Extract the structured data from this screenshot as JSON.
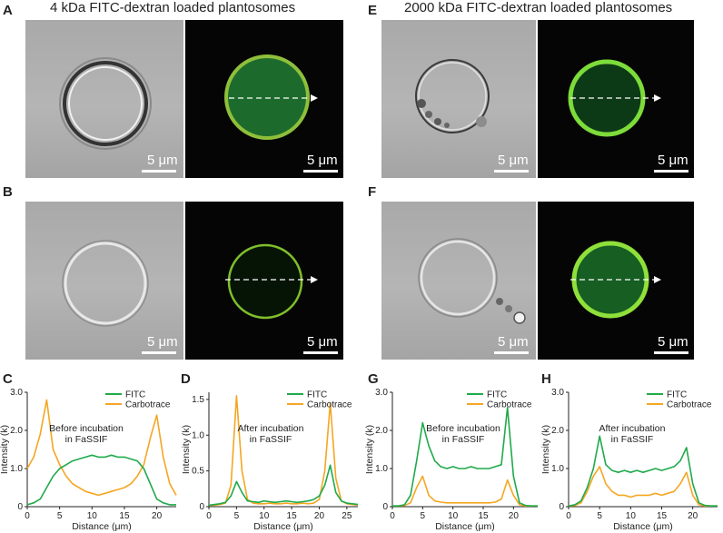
{
  "figure": {
    "titles": {
      "left": "4 kDa FITC-dextran loaded plantosomes",
      "right": "2000 kDa FITC-dextran loaded plantosomes"
    },
    "panel_letters": [
      "A",
      "B",
      "C",
      "D",
      "E",
      "F",
      "G",
      "H"
    ],
    "scale_bar_label": "5 μm",
    "annotations": {
      "C": [
        "Before incubation",
        "in FaSSIF"
      ],
      "D": [
        "After incubation",
        "in FaSSIF"
      ],
      "G": [
        "Before incubation",
        "in FaSSIF"
      ],
      "H": [
        "After incubation",
        "in FaSSIF"
      ]
    },
    "colors": {
      "fitc": "#1faa4a",
      "carbotrace": "#f5a623",
      "fluor_ring": "#9be04a"
    }
  },
  "chart_data": [
    {
      "panel": "C",
      "type": "line",
      "xlabel": "Distance (μm)",
      "ylabel": "Intensity (k)",
      "xlim": [
        0,
        23
      ],
      "ylim": [
        0,
        3.0
      ],
      "xticks": [
        0,
        5,
        10,
        15,
        20
      ],
      "yticks": [
        0,
        1.0,
        2.0,
        3.0
      ],
      "legend": "top-right",
      "series": [
        {
          "name": "FITC",
          "x": [
            0,
            1,
            2,
            3,
            4,
            5,
            6,
            7,
            8,
            9,
            10,
            11,
            12,
            13,
            14,
            15,
            16,
            17,
            18,
            19,
            20,
            21,
            22,
            23
          ],
          "y": [
            0.05,
            0.1,
            0.2,
            0.5,
            0.8,
            1.0,
            1.1,
            1.2,
            1.25,
            1.3,
            1.35,
            1.3,
            1.3,
            1.35,
            1.3,
            1.3,
            1.25,
            1.2,
            1.0,
            0.6,
            0.2,
            0.1,
            0.05,
            0.05
          ]
        },
        {
          "name": "Carbotrace",
          "x": [
            0,
            1,
            2,
            3,
            4,
            5,
            6,
            7,
            8,
            9,
            10,
            11,
            12,
            13,
            14,
            15,
            16,
            17,
            18,
            19,
            20,
            21,
            22,
            23
          ],
          "y": [
            1.0,
            1.3,
            1.9,
            2.8,
            1.5,
            1.1,
            0.8,
            0.6,
            0.5,
            0.4,
            0.35,
            0.3,
            0.35,
            0.4,
            0.45,
            0.5,
            0.6,
            0.8,
            1.1,
            1.8,
            2.4,
            1.3,
            0.6,
            0.3
          ]
        }
      ]
    },
    {
      "panel": "D",
      "type": "line",
      "xlabel": "Distance (μm)",
      "ylabel": "Intensity (k)",
      "xlim": [
        0,
        27
      ],
      "ylim": [
        0,
        1.6
      ],
      "xticks": [
        0,
        5,
        10,
        15,
        20,
        25
      ],
      "yticks": [
        0,
        0.5,
        1.0,
        1.5
      ],
      "legend": "top-right",
      "series": [
        {
          "name": "FITC",
          "x": [
            0,
            1,
            2,
            3,
            4,
            5,
            6,
            7,
            8,
            9,
            10,
            11,
            12,
            13,
            14,
            15,
            16,
            17,
            18,
            19,
            20,
            21,
            22,
            23,
            24,
            25,
            26,
            27
          ],
          "y": [
            0.02,
            0.03,
            0.04,
            0.06,
            0.15,
            0.35,
            0.2,
            0.08,
            0.07,
            0.06,
            0.08,
            0.07,
            0.06,
            0.07,
            0.08,
            0.07,
            0.06,
            0.07,
            0.08,
            0.1,
            0.15,
            0.3,
            0.58,
            0.2,
            0.08,
            0.05,
            0.04,
            0.03
          ]
        },
        {
          "name": "Carbotrace",
          "x": [
            0,
            1,
            2,
            3,
            4,
            5,
            6,
            7,
            8,
            9,
            10,
            11,
            12,
            13,
            14,
            15,
            16,
            17,
            18,
            19,
            20,
            21,
            22,
            23,
            24,
            25,
            26,
            27
          ],
          "y": [
            0.02,
            0.02,
            0.03,
            0.05,
            0.3,
            1.55,
            0.5,
            0.1,
            0.05,
            0.04,
            0.04,
            0.05,
            0.04,
            0.04,
            0.05,
            0.04,
            0.04,
            0.05,
            0.04,
            0.05,
            0.1,
            0.5,
            1.45,
            0.4,
            0.08,
            0.04,
            0.03,
            0.02
          ]
        }
      ]
    },
    {
      "panel": "G",
      "type": "line",
      "xlabel": "Distance (μm)",
      "ylabel": "Intensity (k)",
      "xlim": [
        0,
        24
      ],
      "ylim": [
        0,
        3.0
      ],
      "xticks": [
        0,
        5,
        10,
        15,
        20
      ],
      "yticks": [
        0,
        1.0,
        2.0,
        3.0
      ],
      "legend": "top-right",
      "series": [
        {
          "name": "FITC",
          "x": [
            0,
            1,
            2,
            3,
            4,
            5,
            6,
            7,
            8,
            9,
            10,
            11,
            12,
            13,
            14,
            15,
            16,
            17,
            18,
            19,
            20,
            21,
            22,
            23,
            24
          ],
          "y": [
            0.02,
            0.02,
            0.05,
            0.3,
            1.2,
            2.2,
            1.6,
            1.2,
            1.05,
            1.0,
            1.05,
            1.0,
            1.0,
            1.05,
            1.0,
            1.0,
            1.0,
            1.05,
            1.1,
            2.6,
            0.8,
            0.1,
            0.03,
            0.02,
            0.02
          ]
        },
        {
          "name": "Carbotrace",
          "x": [
            0,
            1,
            2,
            3,
            4,
            5,
            6,
            7,
            8,
            9,
            10,
            11,
            12,
            13,
            14,
            15,
            16,
            17,
            18,
            19,
            20,
            21,
            22,
            23,
            24
          ],
          "y": [
            0.02,
            0.02,
            0.03,
            0.1,
            0.5,
            0.8,
            0.3,
            0.15,
            0.12,
            0.1,
            0.1,
            0.1,
            0.1,
            0.1,
            0.1,
            0.1,
            0.1,
            0.12,
            0.2,
            0.7,
            0.3,
            0.05,
            0.02,
            0.02,
            0.02
          ]
        }
      ]
    },
    {
      "panel": "H",
      "type": "line",
      "xlabel": "Distance (μm)",
      "ylabel": "Intensity (k)",
      "xlim": [
        0,
        24
      ],
      "ylim": [
        0,
        3.0
      ],
      "xticks": [
        0,
        5,
        10,
        15,
        20
      ],
      "yticks": [
        0,
        1.0,
        2.0,
        3.0
      ],
      "legend": "top-right",
      "series": [
        {
          "name": "FITC",
          "x": [
            0,
            1,
            2,
            3,
            4,
            5,
            6,
            7,
            8,
            9,
            10,
            11,
            12,
            13,
            14,
            15,
            16,
            17,
            18,
            19,
            20,
            21,
            22,
            23,
            24
          ],
          "y": [
            0.02,
            0.05,
            0.15,
            0.5,
            1.0,
            1.85,
            1.1,
            0.95,
            0.9,
            0.95,
            0.9,
            0.95,
            0.9,
            0.95,
            1.0,
            0.95,
            1.0,
            1.05,
            1.2,
            1.55,
            0.6,
            0.1,
            0.03,
            0.02,
            0.02
          ]
        },
        {
          "name": "Carbotrace",
          "x": [
            0,
            1,
            2,
            3,
            4,
            5,
            6,
            7,
            8,
            9,
            10,
            11,
            12,
            13,
            14,
            15,
            16,
            17,
            18,
            19,
            20,
            21,
            22,
            23,
            24
          ],
          "y": [
            0.02,
            0.03,
            0.1,
            0.4,
            0.8,
            1.05,
            0.6,
            0.4,
            0.3,
            0.3,
            0.25,
            0.3,
            0.3,
            0.3,
            0.35,
            0.3,
            0.35,
            0.4,
            0.6,
            0.9,
            0.3,
            0.05,
            0.02,
            0.02,
            0.02
          ]
        }
      ]
    }
  ]
}
